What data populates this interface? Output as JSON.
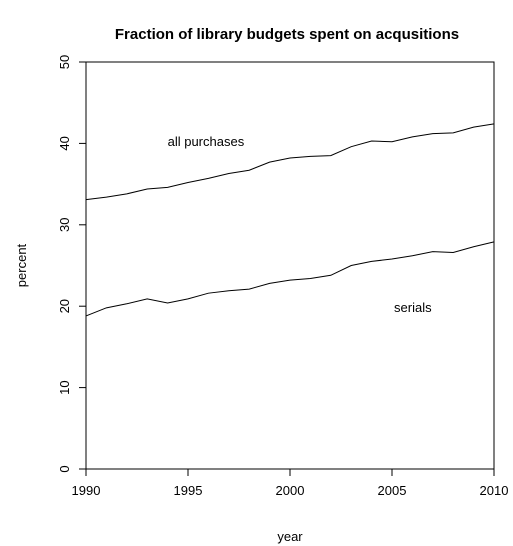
{
  "chart_data": {
    "type": "line",
    "title": "Fraction of library budgets spent on acqusitions",
    "xlabel": "year",
    "ylabel": "percent",
    "xlim": [
      1990,
      2010
    ],
    "ylim": [
      0,
      50
    ],
    "xticks": [
      1990,
      1995,
      2000,
      2005,
      2010
    ],
    "yticks": [
      0,
      10,
      20,
      30,
      40,
      50
    ],
    "grid": false,
    "legend": "none",
    "x": [
      1990,
      1991,
      1992,
      1993,
      1994,
      1995,
      1996,
      1997,
      1998,
      1999,
      2000,
      2001,
      2002,
      2003,
      2004,
      2005,
      2006,
      2007,
      2008,
      2009,
      2010
    ],
    "series": [
      {
        "name": "all purchases",
        "values": [
          33.1,
          33.4,
          33.8,
          34.4,
          34.6,
          35.2,
          35.7,
          36.3,
          36.7,
          37.7,
          38.2,
          38.4,
          38.5,
          39.6,
          40.3,
          40.2,
          40.8,
          41.2,
          41.3,
          42.0,
          42.4
        ]
      },
      {
        "name": "serials",
        "values": [
          18.8,
          19.8,
          20.3,
          20.9,
          20.4,
          20.9,
          21.6,
          21.9,
          22.1,
          22.8,
          23.2,
          23.4,
          23.8,
          25.0,
          25.5,
          25.8,
          26.2,
          26.7,
          26.6,
          27.3,
          27.9
        ]
      }
    ],
    "annotations": [
      {
        "text": "all purchases",
        "x": 1994,
        "y": 40.1
      },
      {
        "text": "serials",
        "x": 2005.1,
        "y": 19.7
      }
    ]
  }
}
